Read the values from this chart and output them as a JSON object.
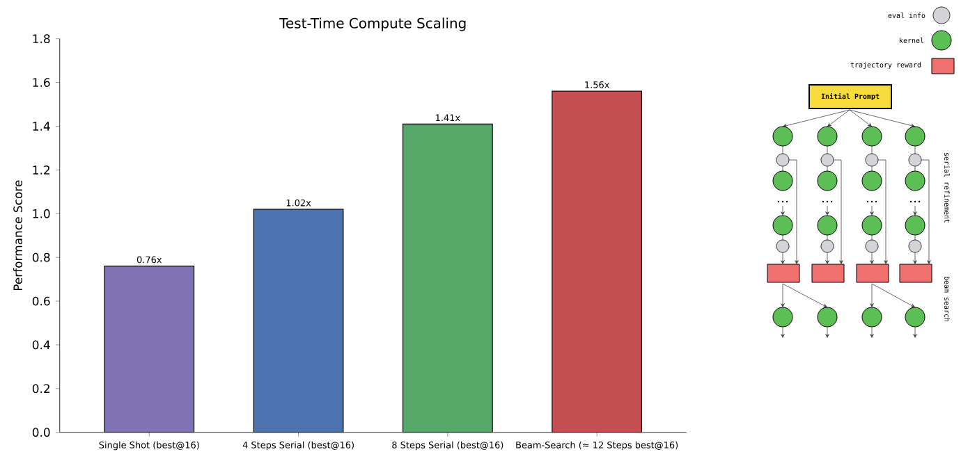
{
  "chart_data": {
    "type": "bar",
    "title": "Test-Time Compute Scaling",
    "ylabel": "Performance Score",
    "categories": [
      "Single Shot (best@16)",
      "4 Steps Serial (best@16)",
      "8 Steps Serial (best@16)",
      "Beam-Search (≈ 12 Steps best@16)"
    ],
    "values": [
      0.76,
      1.02,
      1.41,
      1.56
    ],
    "colors": [
      "#8172b3",
      "#4c72b0",
      "#55a868",
      "#c44e52"
    ],
    "value_labels": [
      "0.76x",
      "1.02x",
      "1.41x",
      "1.56x"
    ],
    "ylim": [
      0,
      1.8
    ],
    "yticks": [
      {
        "value": 0,
        "label": "0.0"
      },
      0.2,
      0.4,
      0.6,
      0.8,
      {
        "value": 1,
        "label": "1.0"
      },
      1.2,
      1.4,
      1.6,
      1.8
    ],
    "grid": false,
    "annotations": [
      "eval info",
      "kernel",
      "trajectory reward",
      "Initial Prompt",
      "serial refinement",
      "beam search"
    ]
  }
}
